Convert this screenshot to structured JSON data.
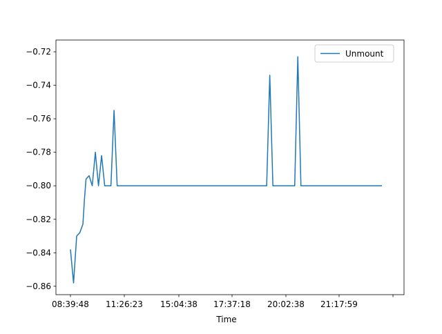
{
  "chart_data": {
    "type": "line",
    "title": "",
    "xlabel": "Time",
    "ylabel": "",
    "x_tick_labels": [
      "08:39:48",
      "11:26:23",
      "15:04:38",
      "17:37:18",
      "20:02:38",
      "21:17:59",
      ""
    ],
    "y_ticks": [
      -0.72,
      -0.74,
      -0.76,
      -0.78,
      -0.8,
      -0.82,
      -0.84,
      -0.86
    ],
    "ylim": [
      -0.865,
      -0.713
    ],
    "grid": false,
    "legend_position": "upper right",
    "series": [
      {
        "name": "Unmount",
        "color": "#1f77b4",
        "points": [
          [
            0.0,
            -0.838
          ],
          [
            1.0,
            -0.858
          ],
          [
            2.0,
            -0.83
          ],
          [
            3.0,
            -0.828
          ],
          [
            4.0,
            -0.823
          ],
          [
            4.5,
            -0.808
          ],
          [
            5.0,
            -0.796
          ],
          [
            6.0,
            -0.794
          ],
          [
            7.0,
            -0.8
          ],
          [
            8.0,
            -0.78
          ],
          [
            9.0,
            -0.8
          ],
          [
            10.0,
            -0.782
          ],
          [
            11.0,
            -0.8
          ],
          [
            12.0,
            -0.8
          ],
          [
            13.0,
            -0.8
          ],
          [
            14.0,
            -0.755
          ],
          [
            15.0,
            -0.8
          ],
          [
            16.0,
            -0.8
          ],
          [
            40.0,
            -0.8
          ],
          [
            63.0,
            -0.8
          ],
          [
            64.0,
            -0.734
          ],
          [
            65.0,
            -0.8
          ],
          [
            66.0,
            -0.8
          ],
          [
            72.0,
            -0.8
          ],
          [
            73.0,
            -0.723
          ],
          [
            74.0,
            -0.8
          ],
          [
            75.0,
            -0.8
          ],
          [
            100.0,
            -0.8
          ]
        ]
      }
    ]
  }
}
